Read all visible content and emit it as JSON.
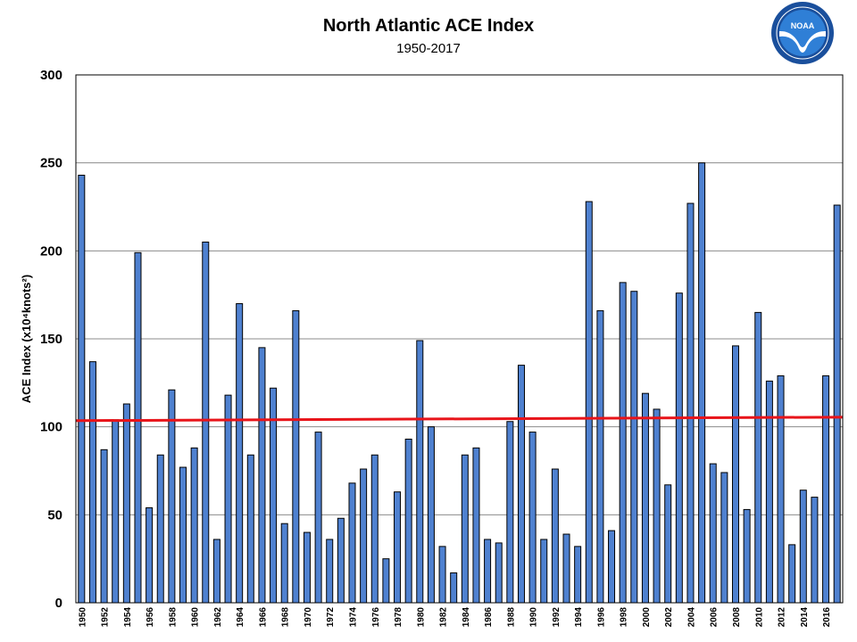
{
  "logo": {
    "name": "NOAA",
    "text": "NOAA",
    "colors": {
      "ring": "#1a4f9c",
      "inner": "#2f7fd6",
      "bird": "#ffffff"
    }
  },
  "colors": {
    "bar_fill": "#4f81d0",
    "bar_stroke": "#000000",
    "trend": "#e8141a",
    "grid": "#8c8c8c"
  },
  "chart_data": {
    "type": "bar",
    "title": "North Atlantic ACE Index",
    "subtitle": "1950-2017",
    "xlabel": "",
    "ylabel": "ACE Index (x10⁴knots²)",
    "ylim": [
      0,
      300
    ],
    "yticks": [
      0,
      50,
      100,
      150,
      200,
      250,
      300
    ],
    "grid": true,
    "categories": [
      1950,
      1951,
      1952,
      1953,
      1954,
      1955,
      1956,
      1957,
      1958,
      1959,
      1960,
      1961,
      1962,
      1963,
      1964,
      1965,
      1966,
      1967,
      1968,
      1969,
      1970,
      1971,
      1972,
      1973,
      1974,
      1975,
      1976,
      1977,
      1978,
      1979,
      1980,
      1981,
      1982,
      1983,
      1984,
      1985,
      1986,
      1987,
      1988,
      1989,
      1990,
      1991,
      1992,
      1993,
      1994,
      1995,
      1996,
      1997,
      1998,
      1999,
      2000,
      2001,
      2002,
      2003,
      2004,
      2005,
      2006,
      2007,
      2008,
      2009,
      2010,
      2011,
      2012,
      2013,
      2014,
      2015,
      2016,
      2017
    ],
    "xtick_labels": [
      "1950",
      "1952",
      "1954",
      "1956",
      "1958",
      "1960",
      "1962",
      "1964",
      "1966",
      "1968",
      "1970",
      "1972",
      "1974",
      "1976",
      "1978",
      "1980",
      "1982",
      "1984",
      "1986",
      "1988",
      "1990",
      "1992",
      "1994",
      "1996",
      "1998",
      "2000",
      "2002",
      "2004",
      "2006",
      "2008",
      "2010",
      "2012",
      "2014",
      "2016"
    ],
    "values": [
      243,
      137,
      87,
      104,
      113,
      199,
      54,
      84,
      121,
      77,
      88,
      205,
      36,
      118,
      170,
      84,
      145,
      122,
      45,
      166,
      40,
      97,
      36,
      48,
      68,
      76,
      84,
      25,
      63,
      93,
      149,
      100,
      32,
      17,
      84,
      88,
      36,
      34,
      103,
      135,
      97,
      36,
      76,
      39,
      32,
      228,
      166,
      41,
      182,
      177,
      119,
      110,
      67,
      176,
      227,
      250,
      79,
      74,
      146,
      53,
      165,
      126,
      129,
      33,
      64,
      60,
      129,
      226
    ],
    "trend": {
      "type": "linear",
      "start": {
        "x": 1950,
        "y": 103.5
      },
      "end": {
        "x": 2017,
        "y": 105.5
      }
    }
  }
}
